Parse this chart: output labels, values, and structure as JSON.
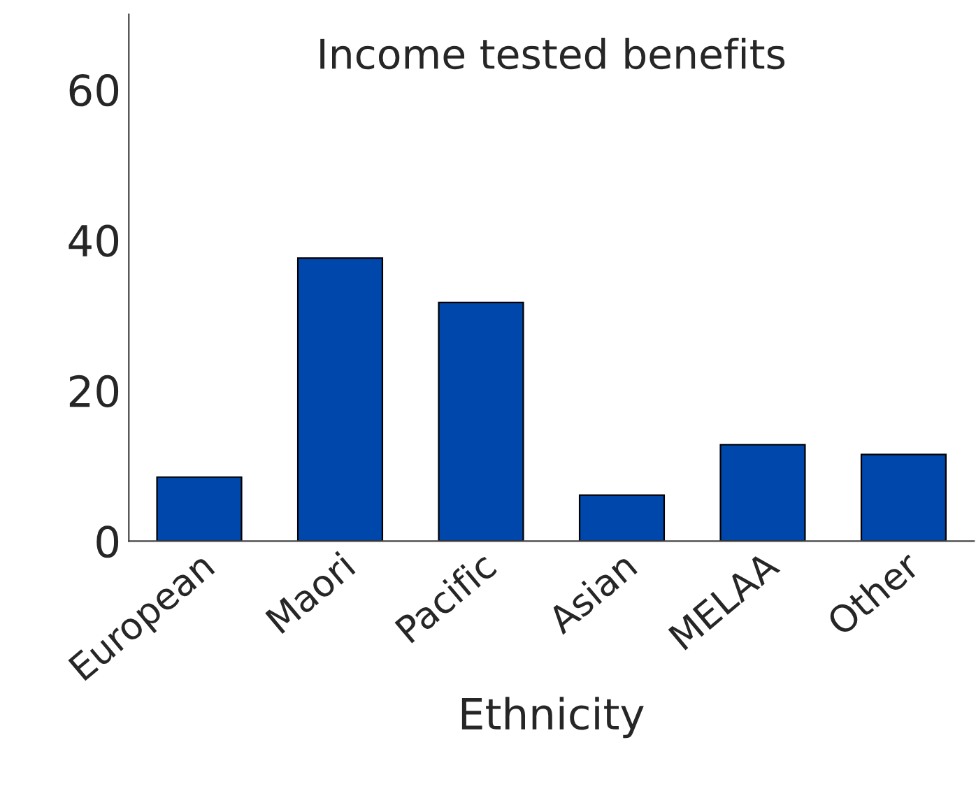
{
  "chart_data": {
    "type": "bar",
    "title": "Income tested benefits",
    "xlabel": "Ethnicity",
    "categories": [
      "European",
      "Maori",
      "Pacific",
      "Asian",
      "MELAA",
      "Other"
    ],
    "values": [
      8.5,
      37.6,
      31.7,
      6.1,
      12.8,
      11.5
    ],
    "color": "#0047ab",
    "ylim": [
      0,
      70
    ],
    "yticks": [
      0,
      20,
      40,
      60
    ],
    "grid": false,
    "legend": false
  }
}
